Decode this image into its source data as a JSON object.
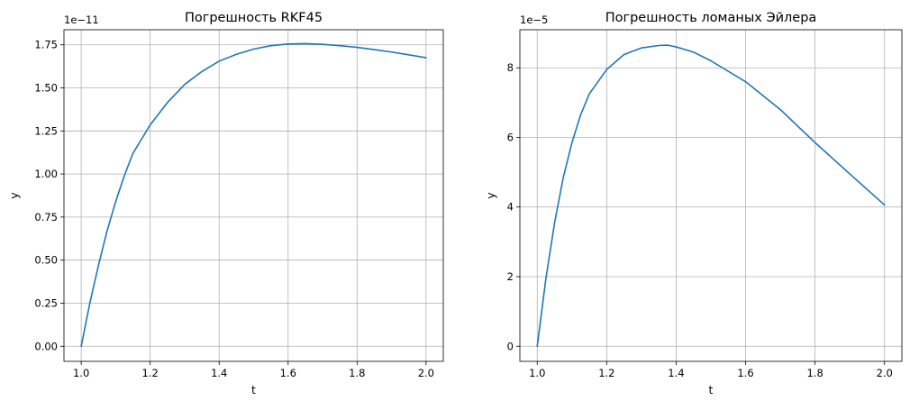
{
  "chart_data": [
    {
      "type": "line",
      "title": "Погрешность RKF45",
      "xlabel": "t",
      "ylabel": "y",
      "y_offset_label": "1e−11",
      "xlim": [
        0.95,
        2.05
      ],
      "ylim": [
        -0.0875,
        1.8375
      ],
      "x_ticks": [
        1.0,
        1.2,
        1.4,
        1.6,
        1.8,
        2.0
      ],
      "x_tick_labels": [
        "1.0",
        "1.2",
        "1.4",
        "1.6",
        "1.8",
        "2.0"
      ],
      "y_ticks": [
        0.0,
        0.25,
        0.5,
        0.75,
        1.0,
        1.25,
        1.5,
        1.75
      ],
      "y_tick_labels": [
        "0.00",
        "0.25",
        "0.50",
        "0.75",
        "1.00",
        "1.25",
        "1.50",
        "1.75"
      ],
      "grid": true,
      "color": "#1f77b4",
      "series": [
        {
          "x": [
            1.0,
            1.025,
            1.05,
            1.075,
            1.1,
            1.125,
            1.15,
            1.2,
            1.25,
            1.3,
            1.35,
            1.4,
            1.45,
            1.5,
            1.55,
            1.6,
            1.65,
            1.7,
            1.75,
            1.8,
            1.85,
            1.9,
            1.95,
            2.0
          ],
          "y": [
            0.0,
            0.25,
            0.47,
            0.67,
            0.84,
            0.99,
            1.12,
            1.285,
            1.415,
            1.52,
            1.595,
            1.655,
            1.695,
            1.725,
            1.745,
            1.755,
            1.757,
            1.753,
            1.745,
            1.735,
            1.722,
            1.708,
            1.692,
            1.675
          ]
        }
      ]
    },
    {
      "type": "line",
      "title": "Погрешность ломаных Эйлера",
      "xlabel": "t",
      "ylabel": "y",
      "y_offset_label": "1e−5",
      "xlim": [
        0.95,
        2.05
      ],
      "ylim": [
        -0.433,
        9.093
      ],
      "x_ticks": [
        1.0,
        1.2,
        1.4,
        1.6,
        1.8,
        2.0
      ],
      "x_tick_labels": [
        "1.0",
        "1.2",
        "1.4",
        "1.6",
        "1.8",
        "2.0"
      ],
      "y_ticks": [
        0,
        2,
        4,
        6,
        8
      ],
      "y_tick_labels": [
        "0",
        "2",
        "4",
        "6",
        "8"
      ],
      "grid": true,
      "color": "#1f77b4",
      "series": [
        {
          "x": [
            1.0,
            1.025,
            1.05,
            1.075,
            1.1,
            1.125,
            1.15,
            1.2,
            1.25,
            1.3,
            1.35,
            1.375,
            1.4,
            1.45,
            1.5,
            1.6,
            1.7,
            1.8,
            1.9,
            2.0
          ],
          "y": [
            0.0,
            1.95,
            3.55,
            4.85,
            5.85,
            6.65,
            7.25,
            7.95,
            8.38,
            8.57,
            8.64,
            8.65,
            8.6,
            8.45,
            8.2,
            7.6,
            6.8,
            5.85,
            4.95,
            4.06
          ]
        }
      ]
    }
  ]
}
